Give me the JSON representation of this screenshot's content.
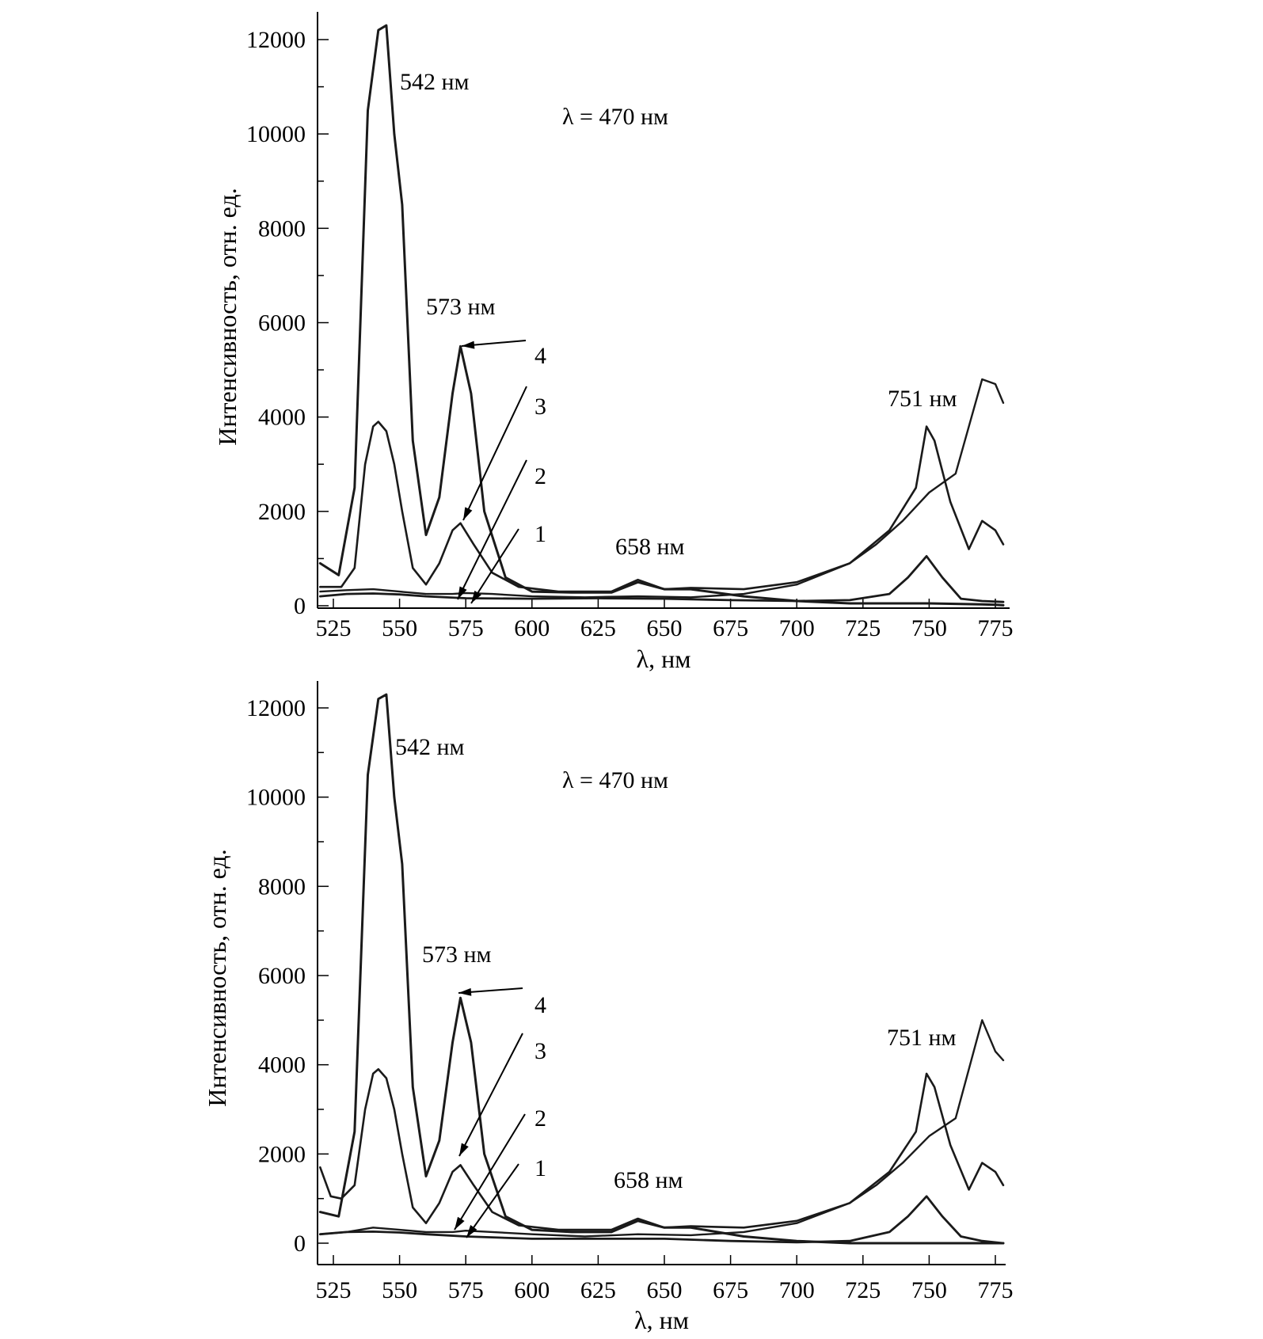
{
  "chart_data": [
    {
      "type": "line",
      "xlabel": "λ, нм",
      "ylabel": "Интенсивность, отн. ед.",
      "xlim": [
        520,
        780
      ],
      "ylim": [
        0,
        12500
      ],
      "xticks": [
        525,
        550,
        575,
        600,
        625,
        650,
        675,
        700,
        725,
        750,
        775
      ],
      "yticks": [
        0,
        2000,
        4000,
        6000,
        8000,
        10000,
        12000
      ],
      "grid": false,
      "annotations": [
        "542 нм",
        "573 нм",
        "658 нм",
        "751 нм",
        "λ = 470 нм"
      ],
      "curve_labels": [
        "1",
        "2",
        "3",
        "4"
      ],
      "series": [
        {
          "name": "4",
          "x": [
            520,
            527,
            533,
            538,
            542,
            545,
            548,
            551,
            555,
            560,
            565,
            570,
            573,
            577,
            582,
            590,
            600,
            615,
            630,
            640,
            650,
            660,
            680,
            700,
            720,
            740,
            750,
            760,
            770,
            775,
            778
          ],
          "y": [
            900,
            650,
            2500,
            10500,
            12200,
            12300,
            10000,
            8500,
            3500,
            1500,
            2300,
            4500,
            5500,
            4500,
            2000,
            600,
            300,
            280,
            280,
            500,
            350,
            350,
            200,
            100,
            50,
            50,
            50,
            40,
            30,
            20,
            10
          ]
        },
        {
          "name": "3",
          "x": [
            520,
            528,
            533,
            537,
            540,
            542,
            545,
            548,
            551,
            555,
            560,
            565,
            570,
            573,
            578,
            585,
            595,
            610,
            630,
            640,
            650,
            660,
            680,
            700,
            720,
            735,
            745,
            749,
            752,
            758,
            765,
            770,
            775,
            778
          ],
          "y": [
            400,
            400,
            800,
            3000,
            3800,
            3900,
            3700,
            3000,
            2000,
            800,
            450,
            900,
            1600,
            1750,
            1300,
            700,
            400,
            300,
            300,
            550,
            350,
            380,
            350,
            500,
            900,
            1600,
            2500,
            3800,
            3500,
            2200,
            1200,
            1800,
            1600,
            1300
          ]
        },
        {
          "name": "2",
          "x": [
            520,
            530,
            540,
            550,
            560,
            570,
            575,
            585,
            600,
            620,
            640,
            660,
            680,
            700,
            720,
            730,
            740,
            750,
            760,
            770,
            775,
            778
          ],
          "y": [
            300,
            330,
            350,
            300,
            250,
            250,
            270,
            250,
            200,
            180,
            200,
            180,
            250,
            450,
            900,
            1300,
            1800,
            2400,
            2800,
            4800,
            4700,
            4300
          ]
        },
        {
          "name": "1",
          "x": [
            520,
            530,
            540,
            550,
            560,
            575,
            600,
            625,
            650,
            675,
            700,
            720,
            735,
            742,
            749,
            755,
            762,
            770,
            778
          ],
          "y": [
            200,
            250,
            260,
            240,
            200,
            160,
            150,
            160,
            150,
            120,
            100,
            120,
            250,
            600,
            1050,
            600,
            150,
            100,
            80
          ]
        }
      ]
    },
    {
      "type": "line",
      "xlabel": "λ, нм",
      "ylabel": "Интенсивность, отн. ед.",
      "xlim": [
        520,
        780
      ],
      "ylim": [
        -500,
        12500
      ],
      "xticks": [
        525,
        550,
        575,
        600,
        625,
        650,
        675,
        700,
        725,
        750,
        775
      ],
      "yticks": [
        0,
        2000,
        4000,
        6000,
        8000,
        10000,
        12000
      ],
      "grid": false,
      "annotations": [
        "542 нм",
        "573 нм",
        "658 нм",
        "751 нм",
        "λ = 470 нм"
      ],
      "curve_labels": [
        "1",
        "2",
        "3",
        "4"
      ],
      "series": [
        {
          "name": "4",
          "x": [
            520,
            527,
            533,
            538,
            542,
            545,
            548,
            551,
            555,
            560,
            565,
            570,
            573,
            577,
            582,
            590,
            600,
            615,
            630,
            640,
            650,
            660,
            680,
            700,
            720,
            740,
            750,
            760,
            770,
            775,
            778
          ],
          "y": [
            700,
            600,
            2500,
            10500,
            12200,
            12300,
            10000,
            8500,
            3500,
            1500,
            2300,
            4500,
            5500,
            4500,
            2000,
            600,
            300,
            250,
            250,
            500,
            350,
            350,
            150,
            50,
            0,
            0,
            0,
            0,
            0,
            0,
            0
          ]
        },
        {
          "name": "3",
          "x": [
            520,
            524,
            528,
            533,
            537,
            540,
            542,
            545,
            548,
            551,
            555,
            560,
            565,
            570,
            573,
            578,
            585,
            595,
            610,
            630,
            640,
            650,
            660,
            680,
            700,
            720,
            735,
            745,
            749,
            752,
            758,
            765,
            770,
            775,
            778
          ],
          "y": [
            1700,
            1050,
            1000,
            1300,
            3000,
            3800,
            3900,
            3700,
            3000,
            2000,
            800,
            450,
            900,
            1600,
            1750,
            1300,
            700,
            400,
            300,
            300,
            550,
            350,
            380,
            350,
            500,
            900,
            1600,
            2500,
            3800,
            3500,
            2200,
            1200,
            1800,
            1600,
            1300
          ]
        },
        {
          "name": "2",
          "x": [
            520,
            530,
            540,
            550,
            560,
            570,
            575,
            585,
            600,
            620,
            640,
            660,
            680,
            700,
            720,
            730,
            740,
            750,
            760,
            770,
            775,
            778
          ],
          "y": [
            200,
            250,
            350,
            300,
            250,
            250,
            280,
            250,
            200,
            150,
            200,
            180,
            250,
            450,
            900,
            1300,
            1800,
            2400,
            2800,
            5000,
            4300,
            4100
          ]
        },
        {
          "name": "1",
          "x": [
            520,
            530,
            540,
            550,
            560,
            575,
            600,
            625,
            650,
            675,
            700,
            720,
            735,
            742,
            749,
            755,
            762,
            770,
            778
          ],
          "y": [
            200,
            250,
            260,
            240,
            200,
            150,
            100,
            100,
            100,
            50,
            20,
            50,
            250,
            600,
            1050,
            600,
            150,
            50,
            0
          ]
        }
      ]
    }
  ]
}
